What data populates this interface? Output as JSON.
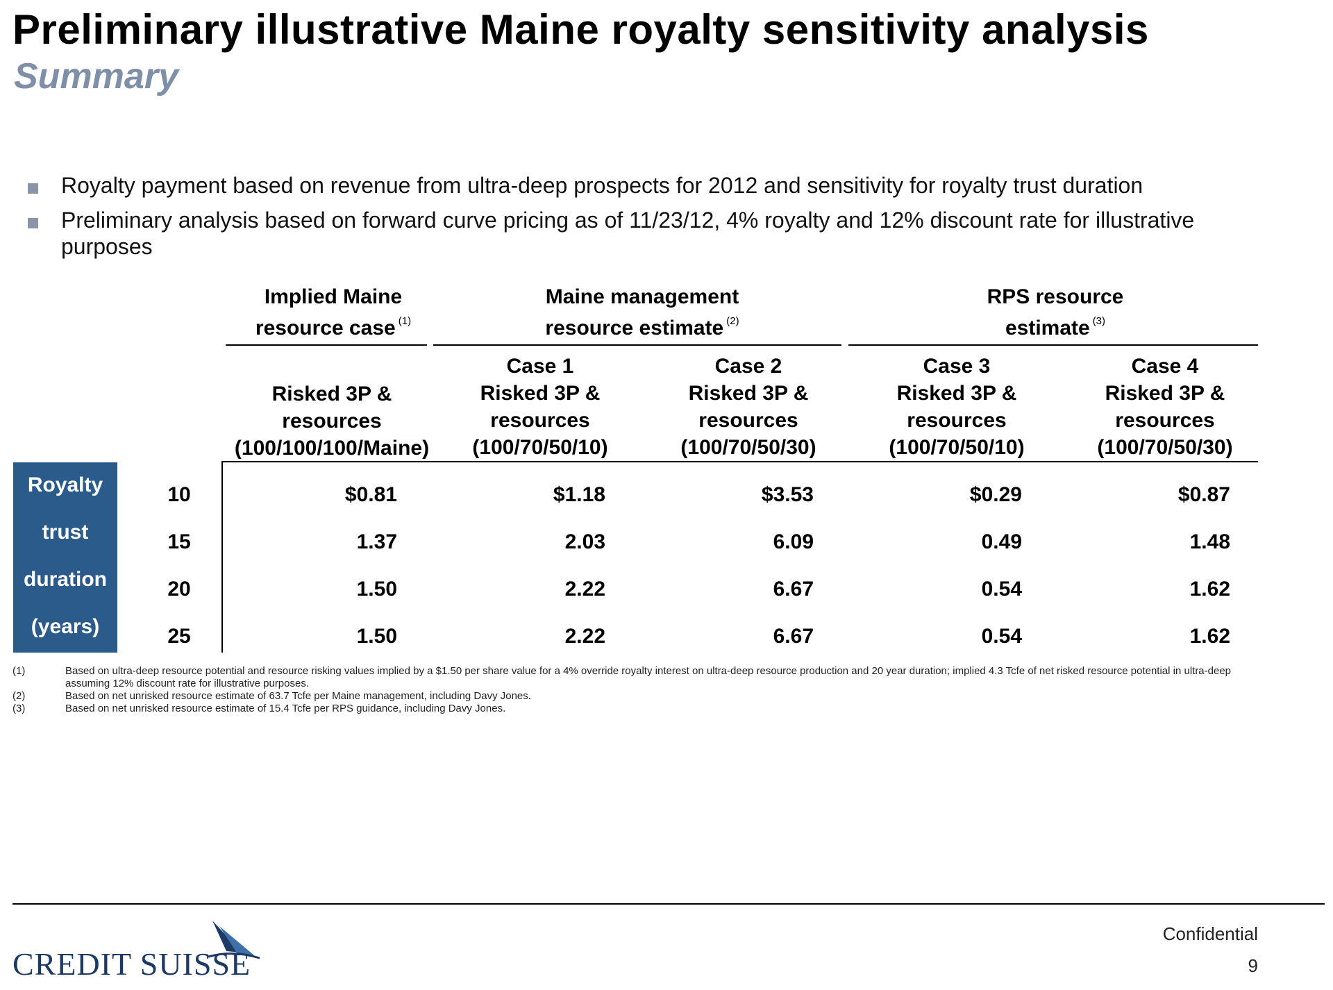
{
  "header": {
    "title": "Preliminary illustrative Maine royalty sensitivity analysis",
    "subtitle": "Summary"
  },
  "bullets": [
    "Royalty payment based on revenue from ultra-deep prospects for 2012 and sensitivity for royalty trust duration",
    "Preliminary analysis based on forward curve pricing as of 11/23/12, 4% royalty and 12% discount rate for illustrative purposes"
  ],
  "table": {
    "group_headers": [
      {
        "line1": "Implied Maine",
        "line2": "resource case",
        "footnote": "(1)"
      },
      {
        "line1": "Maine management",
        "line2": "resource estimate",
        "footnote": "(2)"
      },
      {
        "line1": "RPS resource",
        "line2": "estimate",
        "footnote": "(3)"
      }
    ],
    "columns": [
      {
        "case": "",
        "l1": "Risked 3P &",
        "l2": "resources",
        "l3": "(100/100/100/Maine)"
      },
      {
        "case": "Case 1",
        "l1": "Risked 3P &",
        "l2": "resources",
        "l3": "(100/70/50/10)"
      },
      {
        "case": "Case 2",
        "l1": "Risked 3P &",
        "l2": "resources",
        "l3": "(100/70/50/30)"
      },
      {
        "case": "Case 3",
        "l1": "Risked 3P &",
        "l2": "resources",
        "l3": "(100/70/50/10)"
      },
      {
        "case": "Case 4",
        "l1": "Risked 3P &",
        "l2": "resources",
        "l3": "(100/70/50/30)"
      }
    ],
    "row_label": [
      "Royalty",
      "trust",
      "duration",
      "(years)"
    ],
    "rows": [
      {
        "years": "10",
        "values": [
          "$0.81",
          "$1.18",
          "$3.53",
          "$0.29",
          "$0.87"
        ]
      },
      {
        "years": "15",
        "values": [
          "1.37",
          "2.03",
          "6.09",
          "0.49",
          "1.48"
        ]
      },
      {
        "years": "20",
        "values": [
          "1.50",
          "2.22",
          "6.67",
          "0.54",
          "1.62"
        ]
      },
      {
        "years": "25",
        "values": [
          "1.50",
          "2.22",
          "6.67",
          "0.54",
          "1.62"
        ]
      }
    ]
  },
  "footnotes": [
    {
      "num": "(1)",
      "text": "Based on ultra-deep resource potential and resource risking values implied by a $1.50 per share value for a 4% override royalty interest on ultra-deep resource production and 20 year duration; implied 4.3 Tcfe of net risked resource potential in ultra-deep assuming 12% discount rate for illustrative purposes."
    },
    {
      "num": "(2)",
      "text": "Based on net unrisked resource estimate of 63.7 Tcfe per Maine management, including Davy Jones."
    },
    {
      "num": "(3)",
      "text": "Based on net unrisked resource estimate of 15.4 Tcfe per RPS guidance, including Davy Jones."
    }
  ],
  "footer": {
    "logo": "CREDIT SUISSE",
    "confidential": "Confidential",
    "page": "9"
  },
  "colors": {
    "sidebar": "#2b5b8a",
    "subtitle": "#7f8fa8",
    "logo": "#1d3a66"
  }
}
